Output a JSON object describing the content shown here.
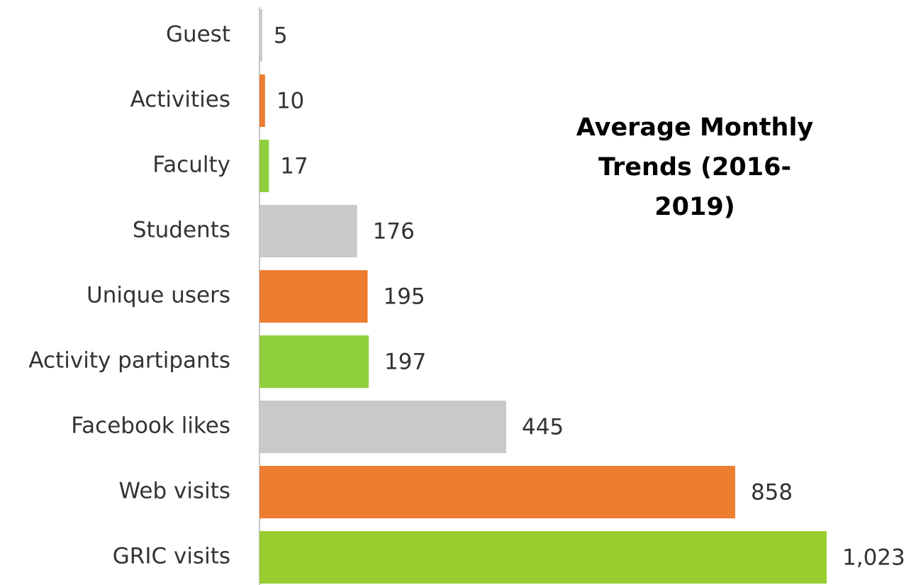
{
  "chart_data": {
    "type": "bar",
    "orientation": "horizontal",
    "title": "Average Monthly Trends (2016-2019)",
    "categories": [
      "Guest",
      "Activities",
      "Faculty",
      "Students",
      "Unique users",
      "Activity partipants",
      "Facebook likes",
      "Web visits",
      "GRIC visits"
    ],
    "values": [
      5,
      10,
      17,
      176,
      195,
      197,
      445,
      858,
      1023
    ],
    "value_labels": [
      "5",
      "10",
      "17",
      "176",
      "195",
      "197",
      "445",
      "858",
      "1,023"
    ],
    "colors": [
      "#c9c9c9",
      "#ed7d31",
      "#8fce3c",
      "#c9c9c9",
      "#ed7d31",
      "#8fce3c",
      "#c9c9c9",
      "#ed7d31",
      "#99cc2e"
    ]
  }
}
